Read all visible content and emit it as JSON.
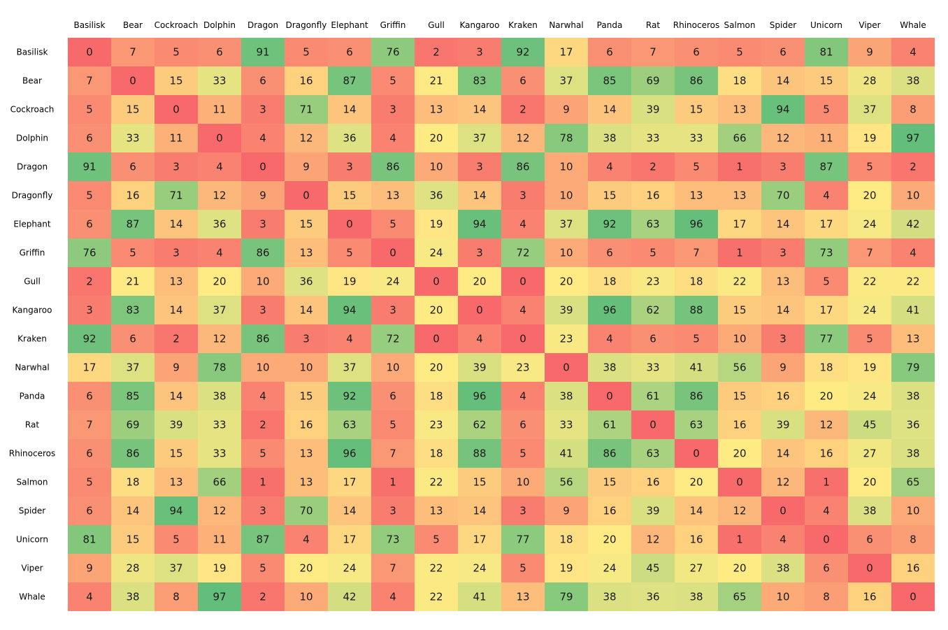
{
  "chart_data": {
    "type": "heatmap",
    "title": "",
    "xlabel": "",
    "ylabel": "",
    "x_categories": [
      "Basilisk",
      "Bear",
      "Cockroach",
      "Dolphin",
      "Dragon",
      "Dragonfly",
      "Elephant",
      "Griffin",
      "Gull",
      "Kangaroo",
      "Kraken",
      "Narwhal",
      "Panda",
      "Rat",
      "Rhinoceros",
      "Salmon",
      "Spider",
      "Unicorn",
      "Viper",
      "Whale"
    ],
    "y_categories": [
      "Basilisk",
      "Bear",
      "Cockroach",
      "Dolphin",
      "Dragon",
      "Dragonfly",
      "Elephant",
      "Griffin",
      "Gull",
      "Kangaroo",
      "Kraken",
      "Narwhal",
      "Panda",
      "Rat",
      "Rhinoceros",
      "Salmon",
      "Spider",
      "Unicorn",
      "Viper",
      "Whale"
    ],
    "values": [
      [
        0,
        7,
        5,
        6,
        91,
        5,
        6,
        76,
        2,
        3,
        92,
        17,
        6,
        7,
        6,
        5,
        6,
        81,
        9,
        4
      ],
      [
        7,
        0,
        15,
        33,
        6,
        16,
        87,
        5,
        21,
        83,
        6,
        37,
        85,
        69,
        86,
        18,
        14,
        15,
        28,
        38
      ],
      [
        5,
        15,
        0,
        11,
        3,
        71,
        14,
        3,
        13,
        14,
        2,
        9,
        14,
        39,
        15,
        13,
        94,
        5,
        37,
        8
      ],
      [
        6,
        33,
        11,
        0,
        4,
        12,
        36,
        4,
        20,
        37,
        12,
        78,
        38,
        33,
        33,
        66,
        12,
        11,
        19,
        97
      ],
      [
        91,
        6,
        3,
        4,
        0,
        9,
        3,
        86,
        10,
        3,
        86,
        10,
        4,
        2,
        5,
        1,
        3,
        87,
        5,
        2
      ],
      [
        5,
        16,
        71,
        12,
        9,
        0,
        15,
        13,
        36,
        14,
        3,
        10,
        15,
        16,
        13,
        13,
        70,
        4,
        20,
        10
      ],
      [
        6,
        87,
        14,
        36,
        3,
        15,
        0,
        5,
        19,
        94,
        4,
        37,
        92,
        63,
        96,
        17,
        14,
        17,
        24,
        42
      ],
      [
        76,
        5,
        3,
        4,
        86,
        13,
        5,
        0,
        24,
        3,
        72,
        10,
        6,
        5,
        7,
        1,
        3,
        73,
        7,
        4
      ],
      [
        2,
        21,
        13,
        20,
        10,
        36,
        19,
        24,
        0,
        20,
        0,
        20,
        18,
        23,
        18,
        22,
        13,
        5,
        22,
        22
      ],
      [
        3,
        83,
        14,
        37,
        3,
        14,
        94,
        3,
        20,
        0,
        4,
        39,
        96,
        62,
        88,
        15,
        14,
        17,
        24,
        41
      ],
      [
        92,
        6,
        2,
        12,
        86,
        3,
        4,
        72,
        0,
        4,
        0,
        23,
        4,
        6,
        5,
        10,
        3,
        77,
        5,
        13
      ],
      [
        17,
        37,
        9,
        78,
        10,
        10,
        37,
        10,
        20,
        39,
        23,
        0,
        38,
        33,
        41,
        56,
        9,
        18,
        19,
        79
      ],
      [
        6,
        85,
        14,
        38,
        4,
        15,
        92,
        6,
        18,
        96,
        4,
        38,
        0,
        61,
        86,
        15,
        16,
        20,
        24,
        38
      ],
      [
        7,
        69,
        39,
        33,
        2,
        16,
        63,
        5,
        23,
        62,
        6,
        33,
        61,
        0,
        63,
        16,
        39,
        12,
        45,
        36
      ],
      [
        6,
        86,
        15,
        33,
        5,
        13,
        96,
        7,
        18,
        88,
        5,
        41,
        86,
        63,
        0,
        20,
        14,
        16,
        27,
        38
      ],
      [
        5,
        18,
        13,
        66,
        1,
        13,
        17,
        1,
        22,
        15,
        10,
        56,
        15,
        16,
        20,
        0,
        12,
        1,
        20,
        65
      ],
      [
        6,
        14,
        94,
        12,
        3,
        70,
        14,
        3,
        13,
        14,
        3,
        9,
        16,
        39,
        14,
        12,
        0,
        4,
        38,
        10
      ],
      [
        81,
        15,
        5,
        11,
        87,
        4,
        17,
        73,
        5,
        17,
        77,
        18,
        20,
        12,
        16,
        1,
        4,
        0,
        6,
        8
      ],
      [
        9,
        28,
        37,
        19,
        5,
        20,
        24,
        7,
        22,
        24,
        5,
        19,
        24,
        45,
        27,
        20,
        38,
        6,
        0,
        16
      ],
      [
        4,
        38,
        8,
        97,
        2,
        10,
        42,
        4,
        22,
        41,
        13,
        79,
        38,
        36,
        38,
        65,
        10,
        8,
        16,
        0
      ]
    ],
    "color_scale": {
      "low": "#f8696b",
      "mid": "#ffeb84",
      "high": "#63be7b",
      "mid_value": 20,
      "range": [
        0,
        97
      ]
    },
    "grid": false,
    "legend": "none"
  }
}
